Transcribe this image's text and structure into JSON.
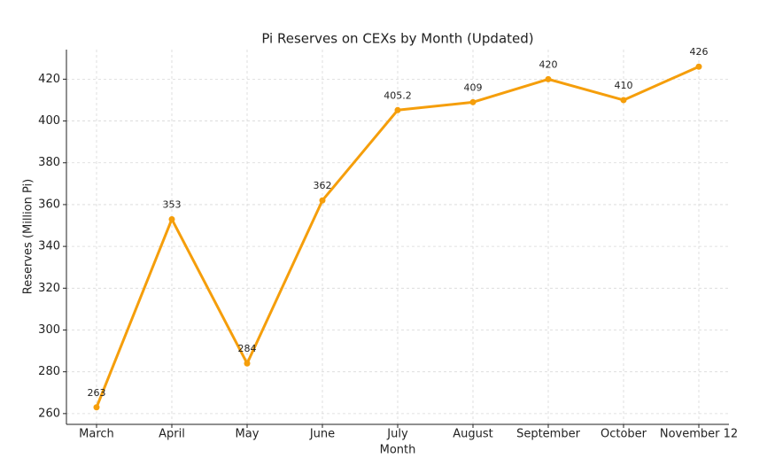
{
  "chart_data": {
    "type": "line",
    "title": "Pi Reserves on CEXs by Month (Updated)",
    "x_label": "Month",
    "y_label": "Reserves (Million Pi)",
    "categories": [
      "March",
      "April",
      "May",
      "June",
      "July",
      "August",
      "September",
      "October",
      "November 12"
    ],
    "series": [
      {
        "name": "Reserves",
        "color": "#f59e0b",
        "values": [
          263,
          353,
          284,
          362,
          405.2,
          409,
          420,
          410,
          426
        ]
      }
    ],
    "ylim": [
      254.85,
      434.15
    ],
    "yticks": [
      260,
      280,
      300,
      320,
      340,
      360,
      380,
      400,
      420
    ],
    "grid": true,
    "data_labels": true
  }
}
